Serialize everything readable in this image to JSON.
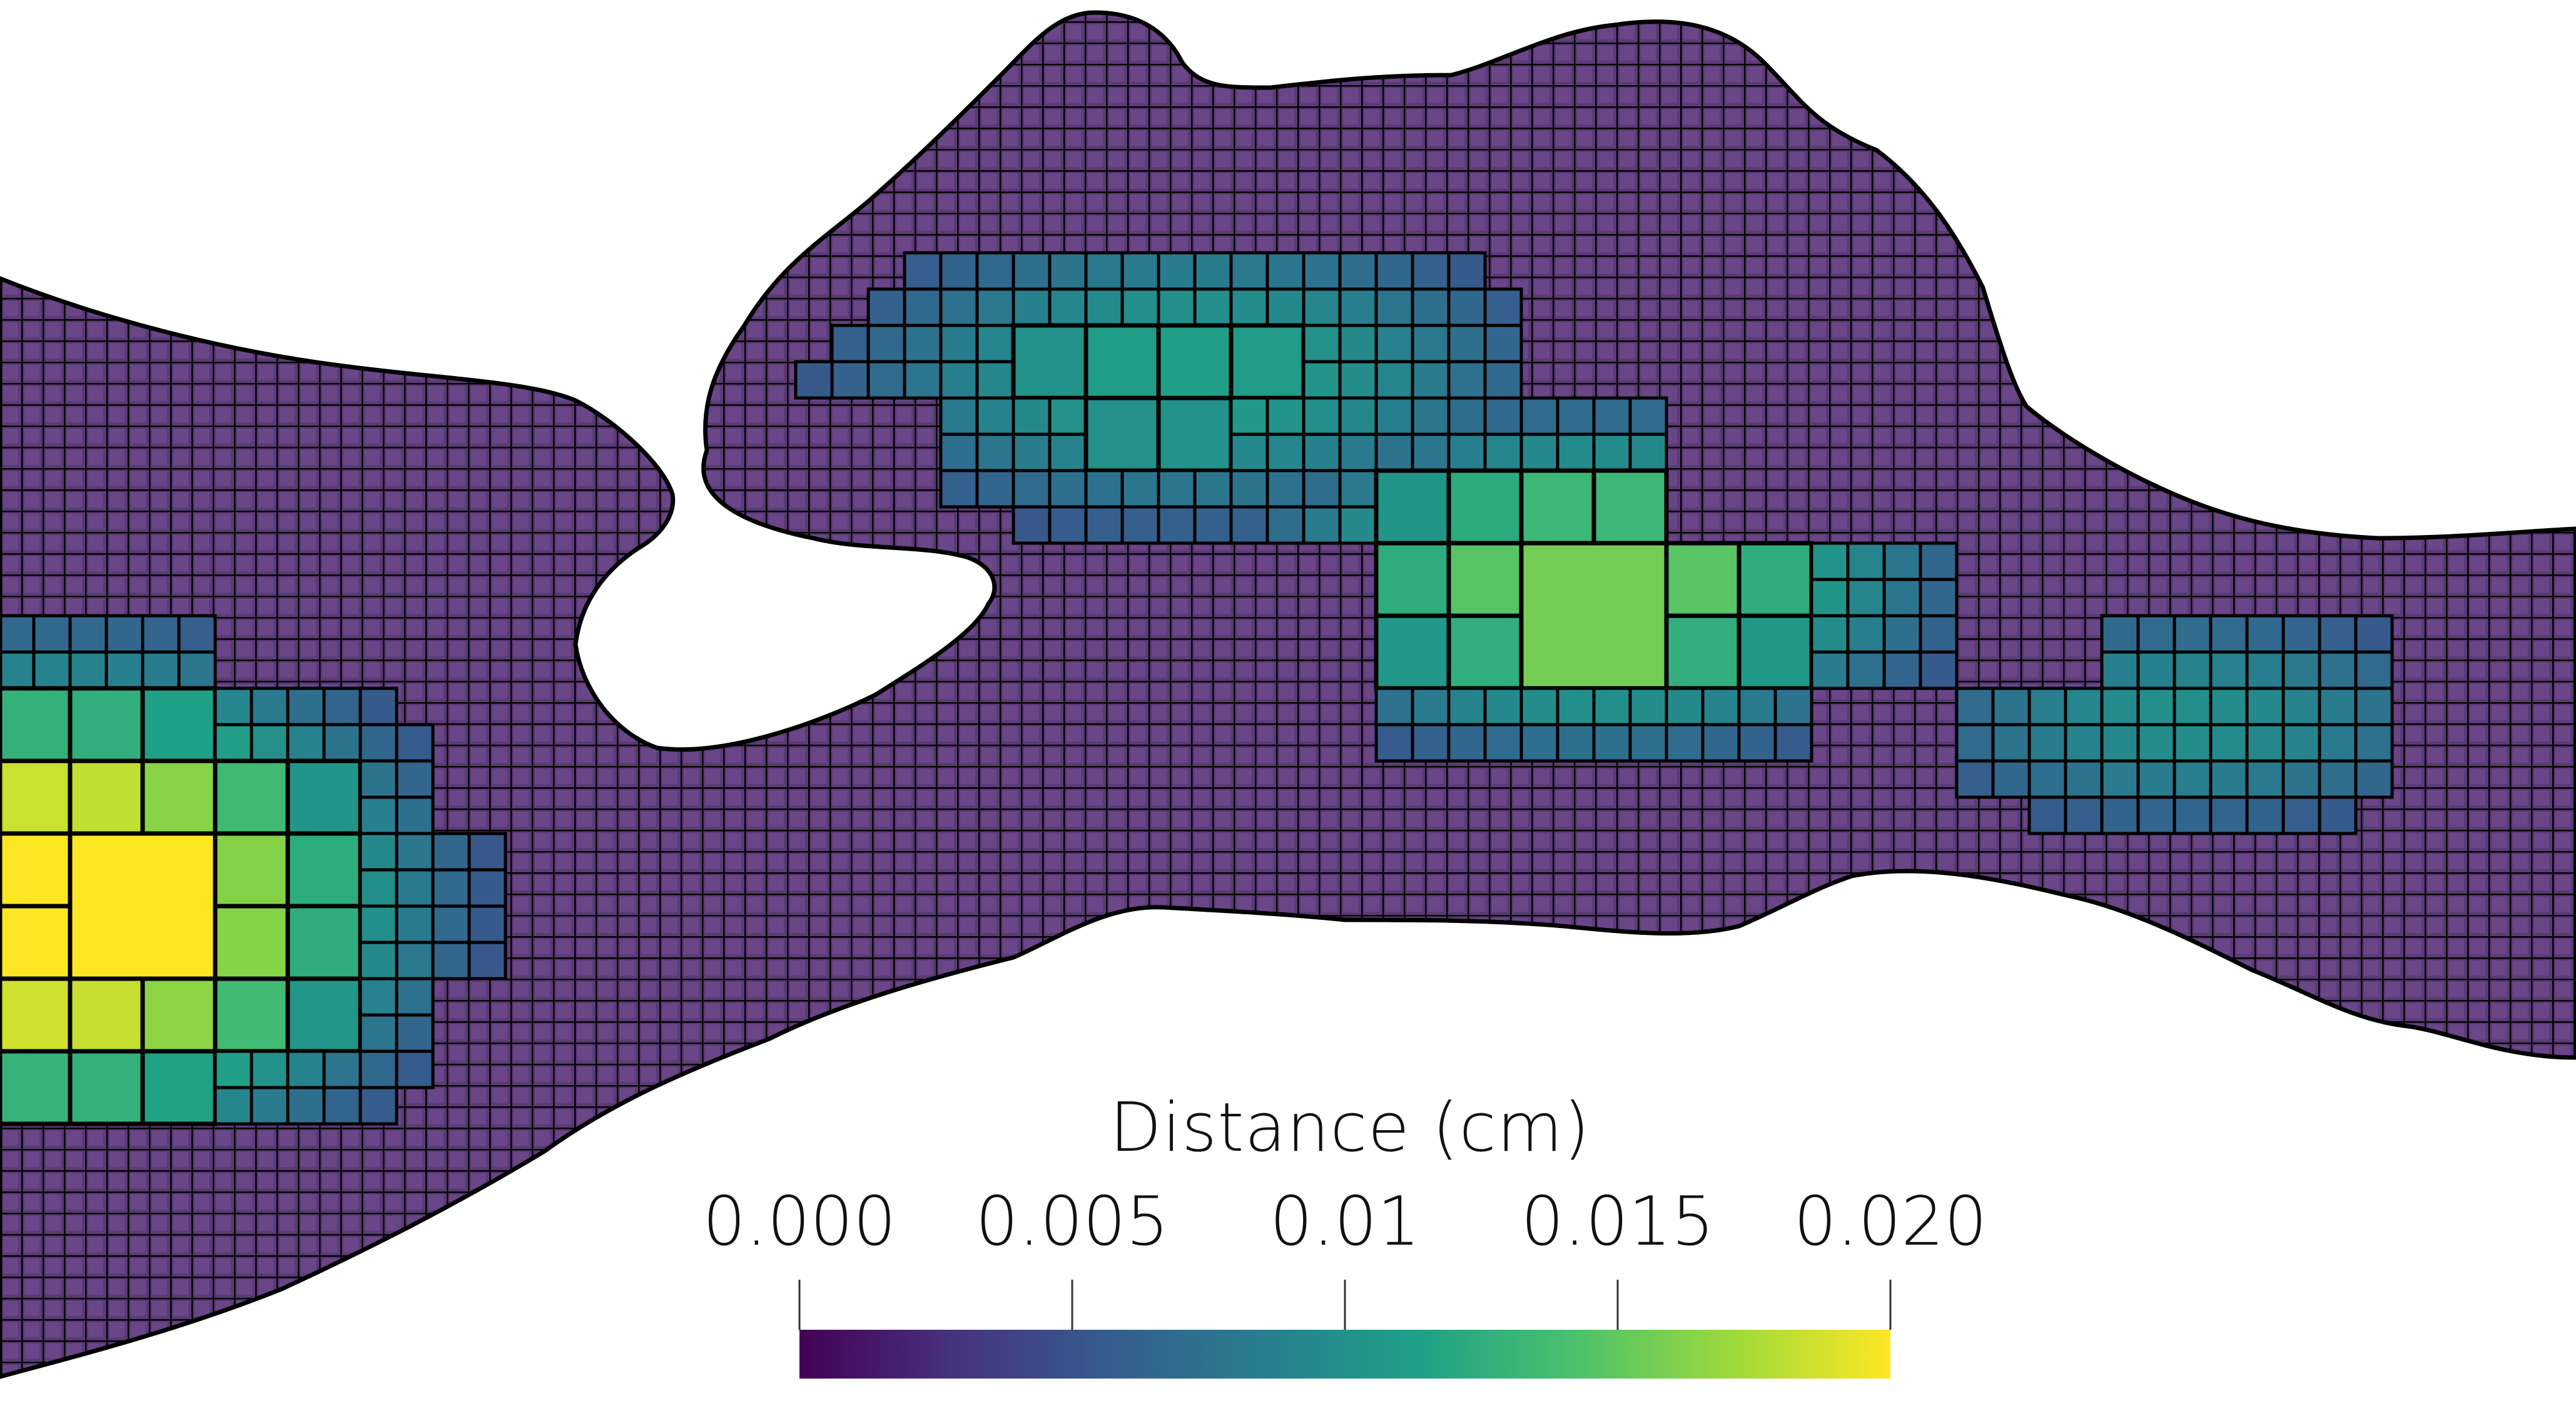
{
  "figure": {
    "colorbar": {
      "title": "Distance (cm)",
      "ticks": [
        "0.000",
        "0.005",
        "0.01",
        "0.015",
        "0.020"
      ],
      "range": [
        0.0,
        0.02
      ],
      "colormap": [
        "#440154",
        "#46327e",
        "#365c8d",
        "#277f8e",
        "#1fa187",
        "#4ac16d",
        "#a0da39",
        "#fde725"
      ]
    },
    "mesh": {
      "background_color": "#ffffff",
      "cell_edge_color": "#000000",
      "fine_cell_color": "#5b3a75"
    }
  }
}
